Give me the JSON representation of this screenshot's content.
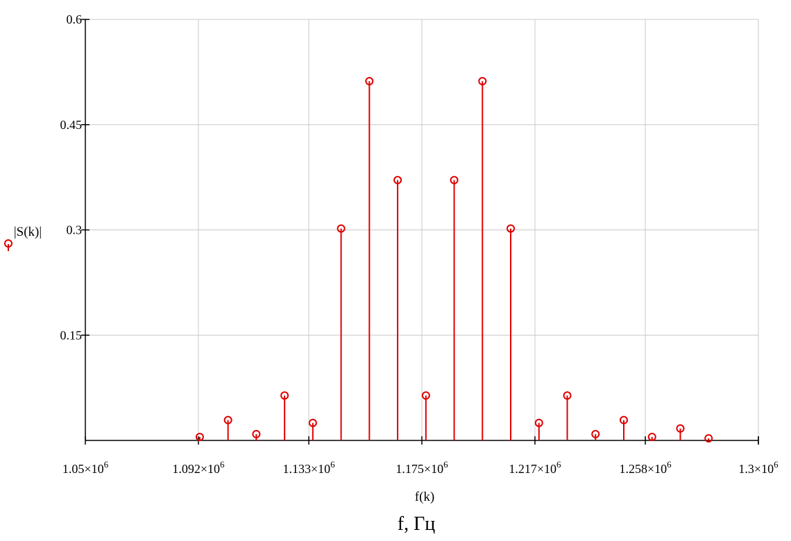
{
  "chart_data": {
    "type": "stem",
    "title": "",
    "xlabel": "f(k)",
    "ylabel": "|S(k)|",
    "xlim": [
      1050000,
      1300000
    ],
    "ylim": [
      0,
      0.6
    ],
    "grid": true,
    "x_ticks": [
      {
        "value": 1050000,
        "mantissa": "1.05",
        "exp": "6"
      },
      {
        "value": 1092000,
        "mantissa": "1.092",
        "exp": "6"
      },
      {
        "value": 1133000,
        "mantissa": "1.133",
        "exp": "6"
      },
      {
        "value": 1175000,
        "mantissa": "1.175",
        "exp": "6"
      },
      {
        "value": 1217000,
        "mantissa": "1.217",
        "exp": "6"
      },
      {
        "value": 1258000,
        "mantissa": "1.258",
        "exp": "6"
      },
      {
        "value": 1300000,
        "mantissa": "1.3",
        "exp": "6"
      }
    ],
    "y_ticks": [
      {
        "value": 0.15,
        "label": "0.15"
      },
      {
        "value": 0.3,
        "label": "0.3"
      },
      {
        "value": 0.45,
        "label": "0.45"
      },
      {
        "value": 0.6,
        "label": "0.6"
      }
    ],
    "series": [
      {
        "color": "#e00000",
        "marker": "circle",
        "x": [
          1092500,
          1103000,
          1113500,
          1124000,
          1134500,
          1145000,
          1155500,
          1166000,
          1176500,
          1187000,
          1197500,
          1208000,
          1218500,
          1229000,
          1239500,
          1250000,
          1260500,
          1271000,
          1281500
        ],
        "y": [
          0.005,
          0.029,
          0.009,
          0.064,
          0.025,
          0.302,
          0.512,
          0.371,
          0.064,
          0.371,
          0.512,
          0.302,
          0.025,
          0.064,
          0.009,
          0.029,
          0.005,
          0.017,
          0.003
        ]
      }
    ]
  },
  "caption": "f, Гц"
}
